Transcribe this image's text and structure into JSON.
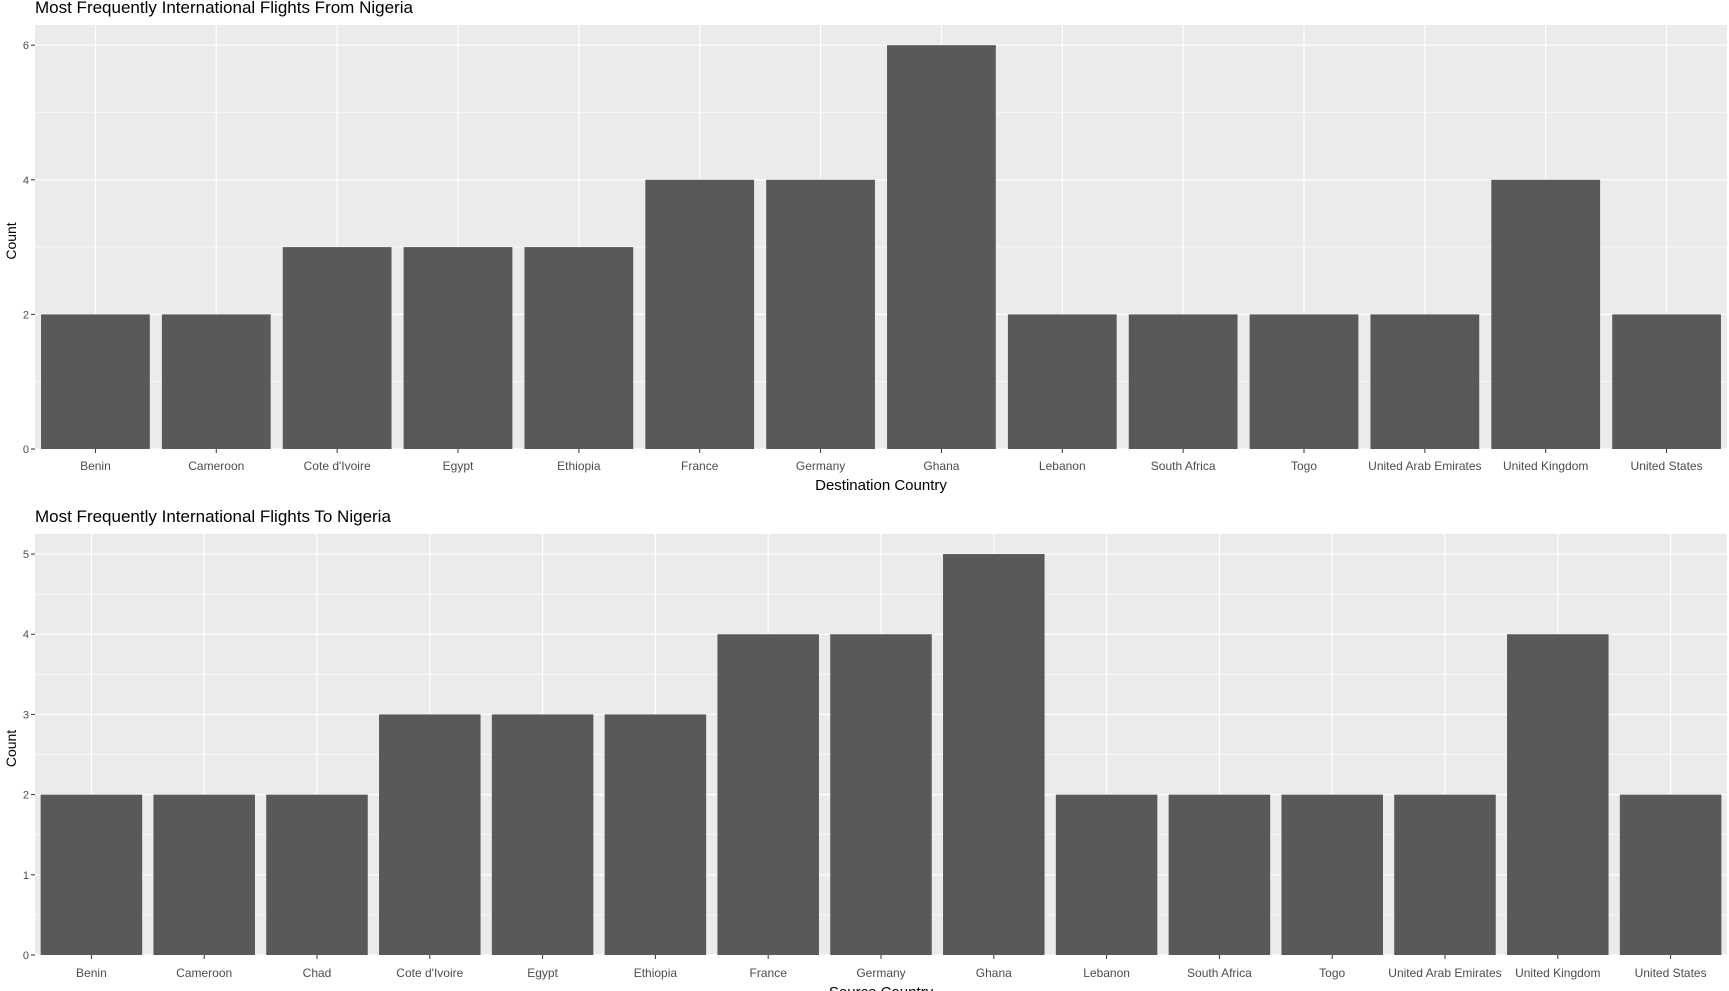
{
  "chart_data": [
    {
      "type": "bar",
      "title": "Most Frequently International Flights From Nigeria",
      "xlabel": "Destination Country",
      "ylabel": "Count",
      "categories": [
        "Benin",
        "Cameroon",
        "Cote d'Ivoire",
        "Egypt",
        "Ethiopia",
        "France",
        "Germany",
        "Ghana",
        "Lebanon",
        "South Africa",
        "Togo",
        "United Arab Emirates",
        "United Kingdom",
        "United States"
      ],
      "values": [
        2,
        2,
        3,
        3,
        3,
        4,
        4,
        6,
        2,
        2,
        2,
        2,
        4,
        2
      ],
      "ylim": [
        0,
        6.3
      ],
      "yticks": [
        0,
        2,
        4,
        6
      ],
      "grid": true,
      "colors": {
        "bar": "#595959",
        "panel": "#ebebeb",
        "grid": "#ffffff"
      }
    },
    {
      "type": "bar",
      "title": "Most Frequently International Flights To Nigeria",
      "xlabel": "Source Country",
      "ylabel": "Count",
      "categories": [
        "Benin",
        "Cameroon",
        "Chad",
        "Cote d'Ivoire",
        "Egypt",
        "Ethiopia",
        "France",
        "Germany",
        "Ghana",
        "Lebanon",
        "South Africa",
        "Togo",
        "United Arab Emirates",
        "United Kingdom",
        "United States"
      ],
      "values": [
        2,
        2,
        2,
        3,
        3,
        3,
        4,
        4,
        5,
        2,
        2,
        2,
        2,
        4,
        2
      ],
      "ylim": [
        0,
        5.25
      ],
      "yticks": [
        0,
        1,
        2,
        3,
        4,
        5
      ],
      "grid": true,
      "colors": {
        "bar": "#595959",
        "panel": "#ebebeb",
        "grid": "#ffffff"
      }
    }
  ]
}
